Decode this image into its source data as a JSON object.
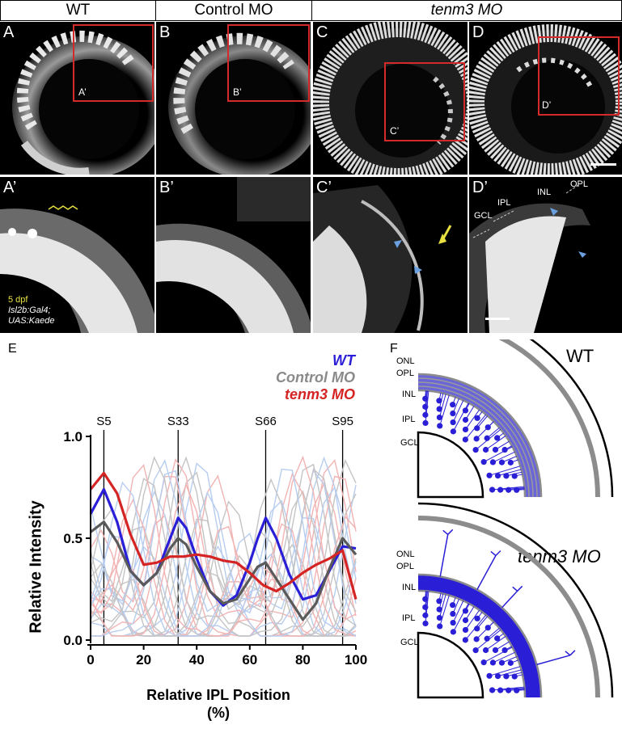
{
  "headers": {
    "wt": "WT",
    "control": "Control MO",
    "tenm3": "tenm3 MO"
  },
  "panels": {
    "A": "A",
    "B": "B",
    "C": "C",
    "D": "D",
    "Ap": "A’",
    "Bp": "B’",
    "Cp": "C’",
    "Dp": "D’"
  },
  "insets": {
    "Ap": "A’",
    "Bp": "B’",
    "Cp": "C’",
    "Dp": "D’"
  },
  "caption": {
    "line1": "5 dpf",
    "line2": "Isl2b:Gal4;",
    "line3": "UAS:Kaede"
  },
  "layer_labels_dp": {
    "gcl": "GCL",
    "ipl": "IPL",
    "inl": "INL",
    "opl": "OPL"
  },
  "panel_E": {
    "letter": "E",
    "legend": {
      "wt": "WT",
      "control": "Control MO",
      "tenm3": "tenm3 MO"
    },
    "sublaminae": [
      "S5",
      "S33",
      "S66",
      "S95"
    ],
    "colors": {
      "wt": "#2a1fd6",
      "control": "#5a5a5a",
      "tenm3": "#d42424"
    }
  },
  "panel_F": {
    "letter": "F",
    "wt_title": "WT",
    "mo_title": "tenm3 MO",
    "layers": [
      "ONL",
      "OPL",
      "INL",
      "IPL",
      "GCL"
    ]
  },
  "chart_data": {
    "type": "line",
    "xlabel": "Relative IPL Position (%)",
    "ylabel": "Relative Intensity",
    "xlim": [
      0,
      100
    ],
    "ylim": [
      0,
      1
    ],
    "xticks": [
      0,
      20,
      40,
      60,
      80,
      100
    ],
    "yticks": [
      0.0,
      0.5,
      1.0
    ],
    "sublamina_positions": [
      5,
      33,
      66,
      95
    ],
    "series": [
      {
        "name": "WT",
        "x": [
          0,
          5,
          10,
          15,
          20,
          25,
          30,
          33,
          36,
          40,
          45,
          50,
          55,
          60,
          63,
          66,
          70,
          75,
          80,
          85,
          90,
          95,
          100
        ],
        "y": [
          0.62,
          0.74,
          0.58,
          0.34,
          0.27,
          0.33,
          0.5,
          0.6,
          0.55,
          0.4,
          0.24,
          0.17,
          0.22,
          0.38,
          0.5,
          0.6,
          0.5,
          0.32,
          0.2,
          0.22,
          0.34,
          0.46,
          0.45
        ]
      },
      {
        "name": "Control MO",
        "x": [
          0,
          5,
          10,
          15,
          20,
          25,
          30,
          33,
          36,
          40,
          45,
          50,
          55,
          60,
          63,
          66,
          70,
          75,
          80,
          85,
          90,
          95,
          100
        ],
        "y": [
          0.53,
          0.58,
          0.48,
          0.34,
          0.27,
          0.33,
          0.45,
          0.5,
          0.47,
          0.36,
          0.24,
          0.18,
          0.2,
          0.3,
          0.36,
          0.38,
          0.3,
          0.2,
          0.1,
          0.18,
          0.35,
          0.5,
          0.42
        ]
      },
      {
        "name": "tenm3 MO",
        "x": [
          0,
          5,
          10,
          15,
          20,
          25,
          30,
          35,
          40,
          45,
          50,
          55,
          60,
          65,
          70,
          75,
          80,
          85,
          90,
          95,
          100
        ],
        "y": [
          0.74,
          0.82,
          0.72,
          0.52,
          0.37,
          0.38,
          0.41,
          0.41,
          0.42,
          0.41,
          0.39,
          0.38,
          0.33,
          0.27,
          0.24,
          0.28,
          0.33,
          0.37,
          0.4,
          0.44,
          0.2
        ]
      }
    ]
  }
}
